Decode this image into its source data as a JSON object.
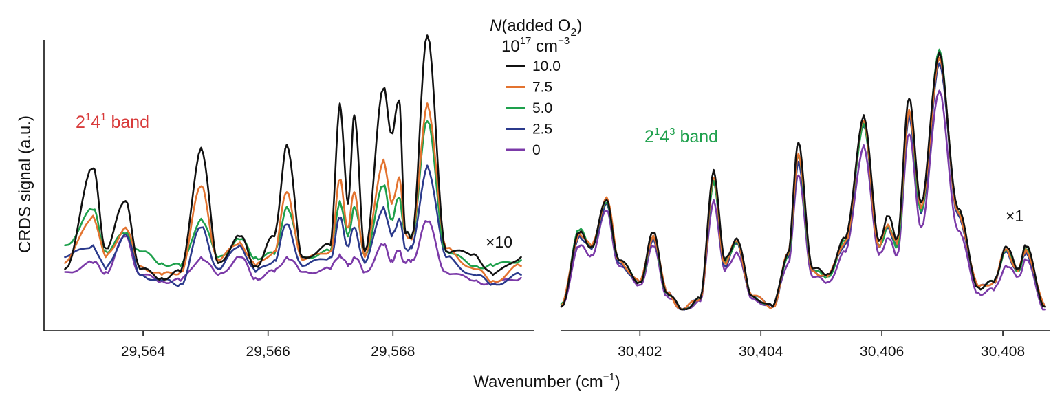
{
  "figure": {
    "ylabel": "CRDS signal (a.u.)",
    "xlabel_main": "Wavenumber (cm",
    "xlabel_sup": "−1",
    "xlabel_tail": ")"
  },
  "legend": {
    "title_italic": "N",
    "title_main": "(added O",
    "title_sub": "2",
    "title_tail": ")",
    "unit_base": "10",
    "unit_exp": "17",
    "unit_rest": " cm",
    "unit_exp2": "−3",
    "entries": [
      {
        "label": "10.0",
        "color": "#111111"
      },
      {
        "label": "7.5",
        "color": "#e3732f"
      },
      {
        "label": "5.0",
        "color": "#1ea04c"
      },
      {
        "label": "2.5",
        "color": "#2b3a8c"
      },
      {
        "label": "0",
        "color": "#7b3aa8"
      }
    ]
  },
  "chart_data": [
    {
      "type": "line",
      "band_label": {
        "a": "2",
        "a_sup": "1",
        "b": "4",
        "b_sup": "1",
        "rest": " band",
        "color": "#d83a3a"
      },
      "factor": "×10",
      "xlim": [
        29562.7,
        29570.1
      ],
      "ylim": [
        0,
        1
      ],
      "xticks": [
        29564,
        29566,
        29568
      ],
      "xtick_labels": [
        "29,564",
        "29,566",
        "29,568"
      ],
      "x": [
        29562.75,
        29563.2,
        29563.4,
        29563.72,
        29563.95,
        29564.3,
        29564.6,
        29564.93,
        29565.2,
        29565.55,
        29565.8,
        29566.1,
        29566.3,
        29566.55,
        29567.0,
        29567.15,
        29567.28,
        29567.38,
        29567.55,
        29567.85,
        29567.98,
        29568.1,
        29568.2,
        29568.3,
        29568.55,
        29568.85,
        29569.3,
        29569.6,
        29570.05
      ],
      "series": [
        {
          "name": "10.0",
          "color": "#111111",
          "values": [
            0.16,
            0.5,
            0.23,
            0.39,
            0.16,
            0.13,
            0.15,
            0.57,
            0.18,
            0.27,
            0.17,
            0.27,
            0.58,
            0.2,
            0.24,
            0.72,
            0.38,
            0.68,
            0.22,
            0.77,
            0.62,
            0.73,
            0.28,
            0.27,
            0.95,
            0.22,
            0.21,
            0.14,
            0.2
          ]
        },
        {
          "name": "7.5",
          "color": "#e3732f",
          "values": [
            0.18,
            0.34,
            0.2,
            0.3,
            0.17,
            0.14,
            0.15,
            0.44,
            0.19,
            0.25,
            0.17,
            0.22,
            0.42,
            0.19,
            0.22,
            0.46,
            0.3,
            0.42,
            0.2,
            0.53,
            0.38,
            0.47,
            0.28,
            0.26,
            0.72,
            0.23,
            0.16,
            0.12,
            0.17
          ]
        },
        {
          "name": "5.0",
          "color": "#1ea04c",
          "values": [
            0.24,
            0.36,
            0.22,
            0.28,
            0.22,
            0.18,
            0.17,
            0.33,
            0.2,
            0.26,
            0.2,
            0.21,
            0.37,
            0.2,
            0.22,
            0.39,
            0.27,
            0.37,
            0.21,
            0.44,
            0.33,
            0.4,
            0.28,
            0.27,
            0.66,
            0.22,
            0.17,
            0.17,
            0.19
          ]
        },
        {
          "name": "2.5",
          "color": "#2b3a8c",
          "values": [
            0.2,
            0.24,
            0.16,
            0.28,
            0.14,
            0.12,
            0.11,
            0.3,
            0.16,
            0.24,
            0.15,
            0.19,
            0.31,
            0.17,
            0.2,
            0.33,
            0.24,
            0.3,
            0.18,
            0.37,
            0.27,
            0.33,
            0.23,
            0.23,
            0.51,
            0.2,
            0.14,
            0.11,
            0.14
          ]
        },
        {
          "name": "0",
          "color": "#7b3aa8",
          "values": [
            0.15,
            0.18,
            0.15,
            0.27,
            0.14,
            0.12,
            0.12,
            0.2,
            0.14,
            0.2,
            0.13,
            0.15,
            0.2,
            0.15,
            0.16,
            0.21,
            0.17,
            0.2,
            0.15,
            0.24,
            0.19,
            0.22,
            0.18,
            0.19,
            0.32,
            0.15,
            0.12,
            0.11,
            0.13
          ]
        }
      ]
    },
    {
      "type": "line",
      "band_label": {
        "a": "2",
        "a_sup": "1",
        "b": "4",
        "b_sup": "3",
        "rest": " band",
        "color": "#1ea04c"
      },
      "factor": "×1",
      "xlim": [
        30400.7,
        30408.75
      ],
      "ylim": [
        0,
        1
      ],
      "xticks": [
        30402,
        30404,
        30406,
        30408
      ],
      "xtick_labels": [
        "30,402",
        "30,404",
        "30,406",
        "30,408"
      ],
      "x": [
        30400.7,
        30401.0,
        30401.2,
        30401.45,
        30401.65,
        30402.0,
        30402.22,
        30402.45,
        30402.7,
        30403.0,
        30403.22,
        30403.4,
        30403.6,
        30403.85,
        30404.2,
        30404.45,
        30404.62,
        30404.85,
        30405.1,
        30405.4,
        30405.7,
        30405.95,
        30406.1,
        30406.25,
        30406.45,
        30406.65,
        30406.95,
        30407.25,
        30407.6,
        30407.85,
        30408.05,
        30408.25,
        30408.38,
        30408.7
      ],
      "series": [
        {
          "name": "10.0",
          "color": "#111111",
          "values": [
            0.05,
            0.32,
            0.27,
            0.44,
            0.22,
            0.14,
            0.32,
            0.1,
            0.04,
            0.08,
            0.55,
            0.22,
            0.3,
            0.09,
            0.05,
            0.25,
            0.65,
            0.19,
            0.17,
            0.3,
            0.75,
            0.29,
            0.38,
            0.3,
            0.81,
            0.43,
            0.98,
            0.41,
            0.12,
            0.14,
            0.27,
            0.19,
            0.27,
            0.05
          ]
        },
        {
          "name": "7.5",
          "color": "#e3732f",
          "values": [
            0.05,
            0.32,
            0.27,
            0.45,
            0.22,
            0.14,
            0.31,
            0.1,
            0.04,
            0.08,
            0.52,
            0.21,
            0.29,
            0.09,
            0.05,
            0.24,
            0.61,
            0.18,
            0.16,
            0.29,
            0.73,
            0.27,
            0.35,
            0.28,
            0.77,
            0.41,
            0.96,
            0.4,
            0.12,
            0.14,
            0.26,
            0.18,
            0.26,
            0.05
          ]
        },
        {
          "name": "5.0",
          "color": "#1ea04c",
          "values": [
            0.06,
            0.33,
            0.27,
            0.43,
            0.22,
            0.14,
            0.3,
            0.1,
            0.04,
            0.08,
            0.51,
            0.21,
            0.29,
            0.09,
            0.05,
            0.24,
            0.6,
            0.18,
            0.16,
            0.29,
            0.72,
            0.27,
            0.34,
            0.27,
            0.76,
            0.4,
            0.99,
            0.4,
            0.12,
            0.14,
            0.26,
            0.18,
            0.26,
            0.05
          ]
        },
        {
          "name": "2.5",
          "color": "#2b3a8c",
          "values": [
            0.05,
            0.31,
            0.26,
            0.43,
            0.21,
            0.14,
            0.3,
            0.1,
            0.04,
            0.08,
            0.5,
            0.2,
            0.28,
            0.09,
            0.05,
            0.23,
            0.58,
            0.18,
            0.16,
            0.28,
            0.71,
            0.27,
            0.34,
            0.27,
            0.75,
            0.39,
            0.94,
            0.39,
            0.12,
            0.14,
            0.25,
            0.18,
            0.25,
            0.05
          ]
        },
        {
          "name": "0",
          "color": "#7b3aa8",
          "values": [
            0.05,
            0.27,
            0.24,
            0.4,
            0.2,
            0.13,
            0.27,
            0.09,
            0.04,
            0.07,
            0.44,
            0.18,
            0.25,
            0.08,
            0.05,
            0.21,
            0.53,
            0.16,
            0.14,
            0.25,
            0.64,
            0.24,
            0.3,
            0.24,
            0.68,
            0.34,
            0.84,
            0.33,
            0.1,
            0.11,
            0.2,
            0.16,
            0.22,
            0.04
          ]
        }
      ]
    }
  ]
}
